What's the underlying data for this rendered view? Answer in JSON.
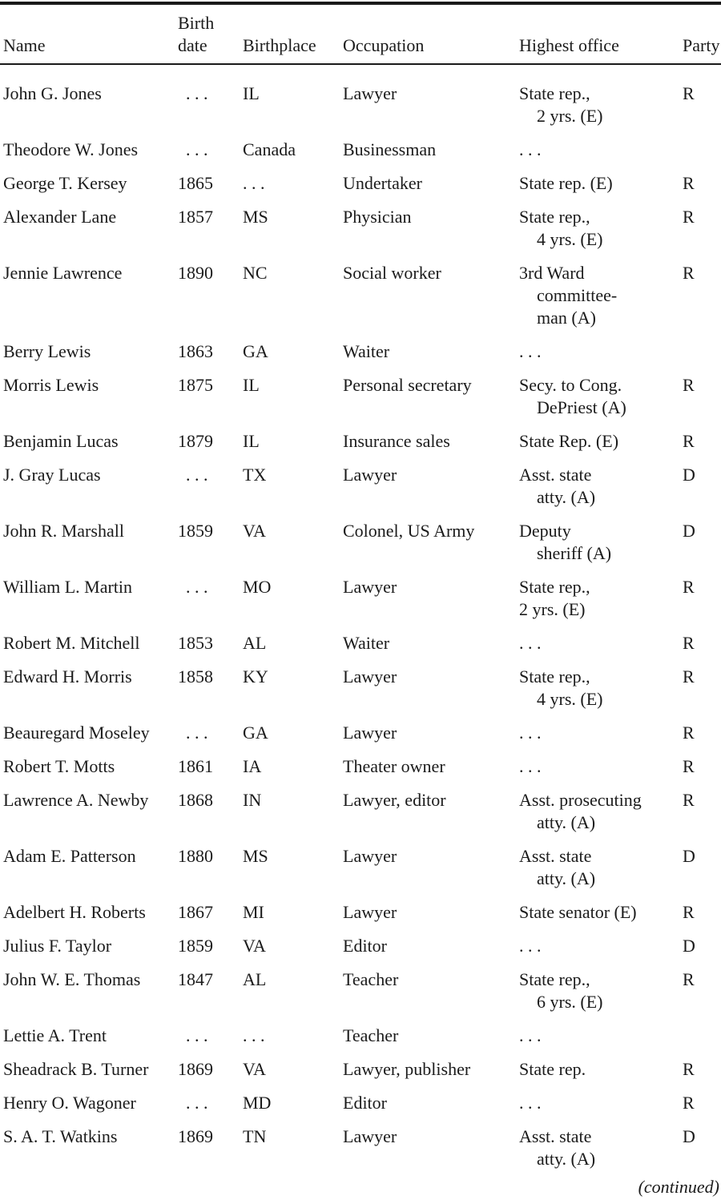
{
  "page": {
    "background": "#ffffff",
    "text_color": "#1b1b1b",
    "rule_color": "#1a1a1a"
  },
  "table": {
    "columns": [
      {
        "id": "name",
        "lines": [
          "Name"
        ]
      },
      {
        "id": "birth-date",
        "lines": [
          "Birth",
          "date"
        ]
      },
      {
        "id": "birthplace",
        "lines": [
          "Birthplace"
        ]
      },
      {
        "id": "occupation",
        "lines": [
          "Occupation"
        ]
      },
      {
        "id": "highest-office",
        "lines": [
          "Highest office"
        ]
      },
      {
        "id": "party",
        "lines": [
          "Party"
        ]
      }
    ],
    "rows": [
      {
        "name": "John G. Jones",
        "birth_date": ". . .",
        "birthplace": "IL",
        "occupation": "Lawyer",
        "office_lines": [
          "State rep.,",
          "2 yrs. (E)"
        ],
        "office_flush": false,
        "party": "R"
      },
      {
        "name": "Theodore W. Jones",
        "birth_date": ". . .",
        "birthplace": "Canada",
        "occupation": "Businessman",
        "office_lines": [
          ". . ."
        ],
        "office_flush": false,
        "party": ""
      },
      {
        "name": "George T. Kersey",
        "birth_date": "1865",
        "birthplace": ". . .",
        "occupation": "Undertaker",
        "office_lines": [
          "State rep. (E)"
        ],
        "office_flush": false,
        "party": "R"
      },
      {
        "name": "Alexander Lane",
        "birth_date": "1857",
        "birthplace": "MS",
        "occupation": "Physician",
        "office_lines": [
          "State rep.,",
          "4 yrs. (E)"
        ],
        "office_flush": false,
        "party": "R"
      },
      {
        "name": "Jennie Lawrence",
        "birth_date": "1890",
        "birthplace": "NC",
        "occupation": "Social worker",
        "office_lines": [
          "3rd Ward",
          "committee-",
          "man (A)"
        ],
        "office_flush": false,
        "party": "R"
      },
      {
        "name": "Berry Lewis",
        "birth_date": "1863",
        "birthplace": "GA",
        "occupation": "Waiter",
        "office_lines": [
          ". . ."
        ],
        "office_flush": false,
        "party": ""
      },
      {
        "name": "Morris Lewis",
        "birth_date": "1875",
        "birthplace": "IL",
        "occupation": "Personal secretary",
        "office_lines": [
          "Secy. to Cong.",
          "DePriest (A)"
        ],
        "office_flush": false,
        "party": "R"
      },
      {
        "name": "Benjamin Lucas",
        "birth_date": "1879",
        "birthplace": "IL",
        "occupation": "Insurance sales",
        "office_lines": [
          "State Rep. (E)"
        ],
        "office_flush": false,
        "party": "R"
      },
      {
        "name": "J. Gray Lucas",
        "birth_date": ". . .",
        "birthplace": "TX",
        "occupation": "Lawyer",
        "office_lines": [
          "Asst. state",
          "atty. (A)"
        ],
        "office_flush": false,
        "party": "D"
      },
      {
        "name": "John R. Marshall",
        "birth_date": "1859",
        "birthplace": "VA",
        "occupation": "Colonel, US Army",
        "office_lines": [
          "Deputy",
          "sheriff (A)"
        ],
        "office_flush": false,
        "party": "D"
      },
      {
        "name": "William L. Martin",
        "birth_date": ". . .",
        "birthplace": "MO",
        "occupation": "Lawyer",
        "office_lines": [
          "State rep.,",
          "2 yrs. (E)"
        ],
        "office_flush": true,
        "party": "R"
      },
      {
        "name": "Robert M. Mitchell",
        "birth_date": "1853",
        "birthplace": "AL",
        "occupation": "Waiter",
        "office_lines": [
          ". . ."
        ],
        "office_flush": false,
        "party": "R"
      },
      {
        "name": "Edward H. Morris",
        "birth_date": "1858",
        "birthplace": "KY",
        "occupation": "Lawyer",
        "office_lines": [
          "State rep.,",
          "4 yrs. (E)"
        ],
        "office_flush": false,
        "party": "R"
      },
      {
        "name": "Beauregard Moseley",
        "birth_date": ". . .",
        "birthplace": "GA",
        "occupation": "Lawyer",
        "office_lines": [
          ". . ."
        ],
        "office_flush": false,
        "party": "R"
      },
      {
        "name": "Robert T. Motts",
        "birth_date": "1861",
        "birthplace": "IA",
        "occupation": "Theater owner",
        "office_lines": [
          ". . ."
        ],
        "office_flush": false,
        "party": "R"
      },
      {
        "name": "Lawrence A. Newby",
        "birth_date": "1868",
        "birthplace": "IN",
        "occupation": "Lawyer, editor",
        "office_lines": [
          "Asst. prosecuting",
          "atty. (A)"
        ],
        "office_flush": false,
        "party": "R"
      },
      {
        "name": "Adam E. Patterson",
        "birth_date": "1880",
        "birthplace": "MS",
        "occupation": "Lawyer",
        "office_lines": [
          "Asst. state",
          "atty. (A)"
        ],
        "office_flush": false,
        "party": "D"
      },
      {
        "name": "Adelbert H. Roberts",
        "birth_date": "1867",
        "birthplace": "MI",
        "occupation": "Lawyer",
        "office_lines": [
          "State senator (E)"
        ],
        "office_flush": false,
        "party": "R"
      },
      {
        "name": "Julius F. Taylor",
        "birth_date": "1859",
        "birthplace": "VA",
        "occupation": "Editor",
        "office_lines": [
          ". . ."
        ],
        "office_flush": false,
        "party": "D"
      },
      {
        "name": "John W. E. Thomas",
        "birth_date": "1847",
        "birthplace": "AL",
        "occupation": "Teacher",
        "office_lines": [
          "State rep.,",
          "6 yrs. (E)"
        ],
        "office_flush": false,
        "party": "R"
      },
      {
        "name": "Lettie A. Trent",
        "birth_date": ". . .",
        "birthplace": ". . .",
        "occupation": "Teacher",
        "office_lines": [
          ". . ."
        ],
        "office_flush": false,
        "party": ""
      },
      {
        "name": "Sheadrack B. Turner",
        "birth_date": "1869",
        "birthplace": "VA",
        "occupation": "Lawyer, publisher",
        "office_lines": [
          "State rep."
        ],
        "office_flush": false,
        "party": "R"
      },
      {
        "name": "Henry O. Wagoner",
        "birth_date": ". . .",
        "birthplace": "MD",
        "occupation": "Editor",
        "office_lines": [
          ". . ."
        ],
        "office_flush": false,
        "party": "R"
      },
      {
        "name": "S. A. T. Watkins",
        "birth_date": "1869",
        "birthplace": "TN",
        "occupation": "Lawyer",
        "office_lines": [
          "Asst. state",
          "atty. (A)"
        ],
        "office_flush": false,
        "party": "D"
      }
    ]
  },
  "footer": {
    "continued": "(continued)"
  }
}
